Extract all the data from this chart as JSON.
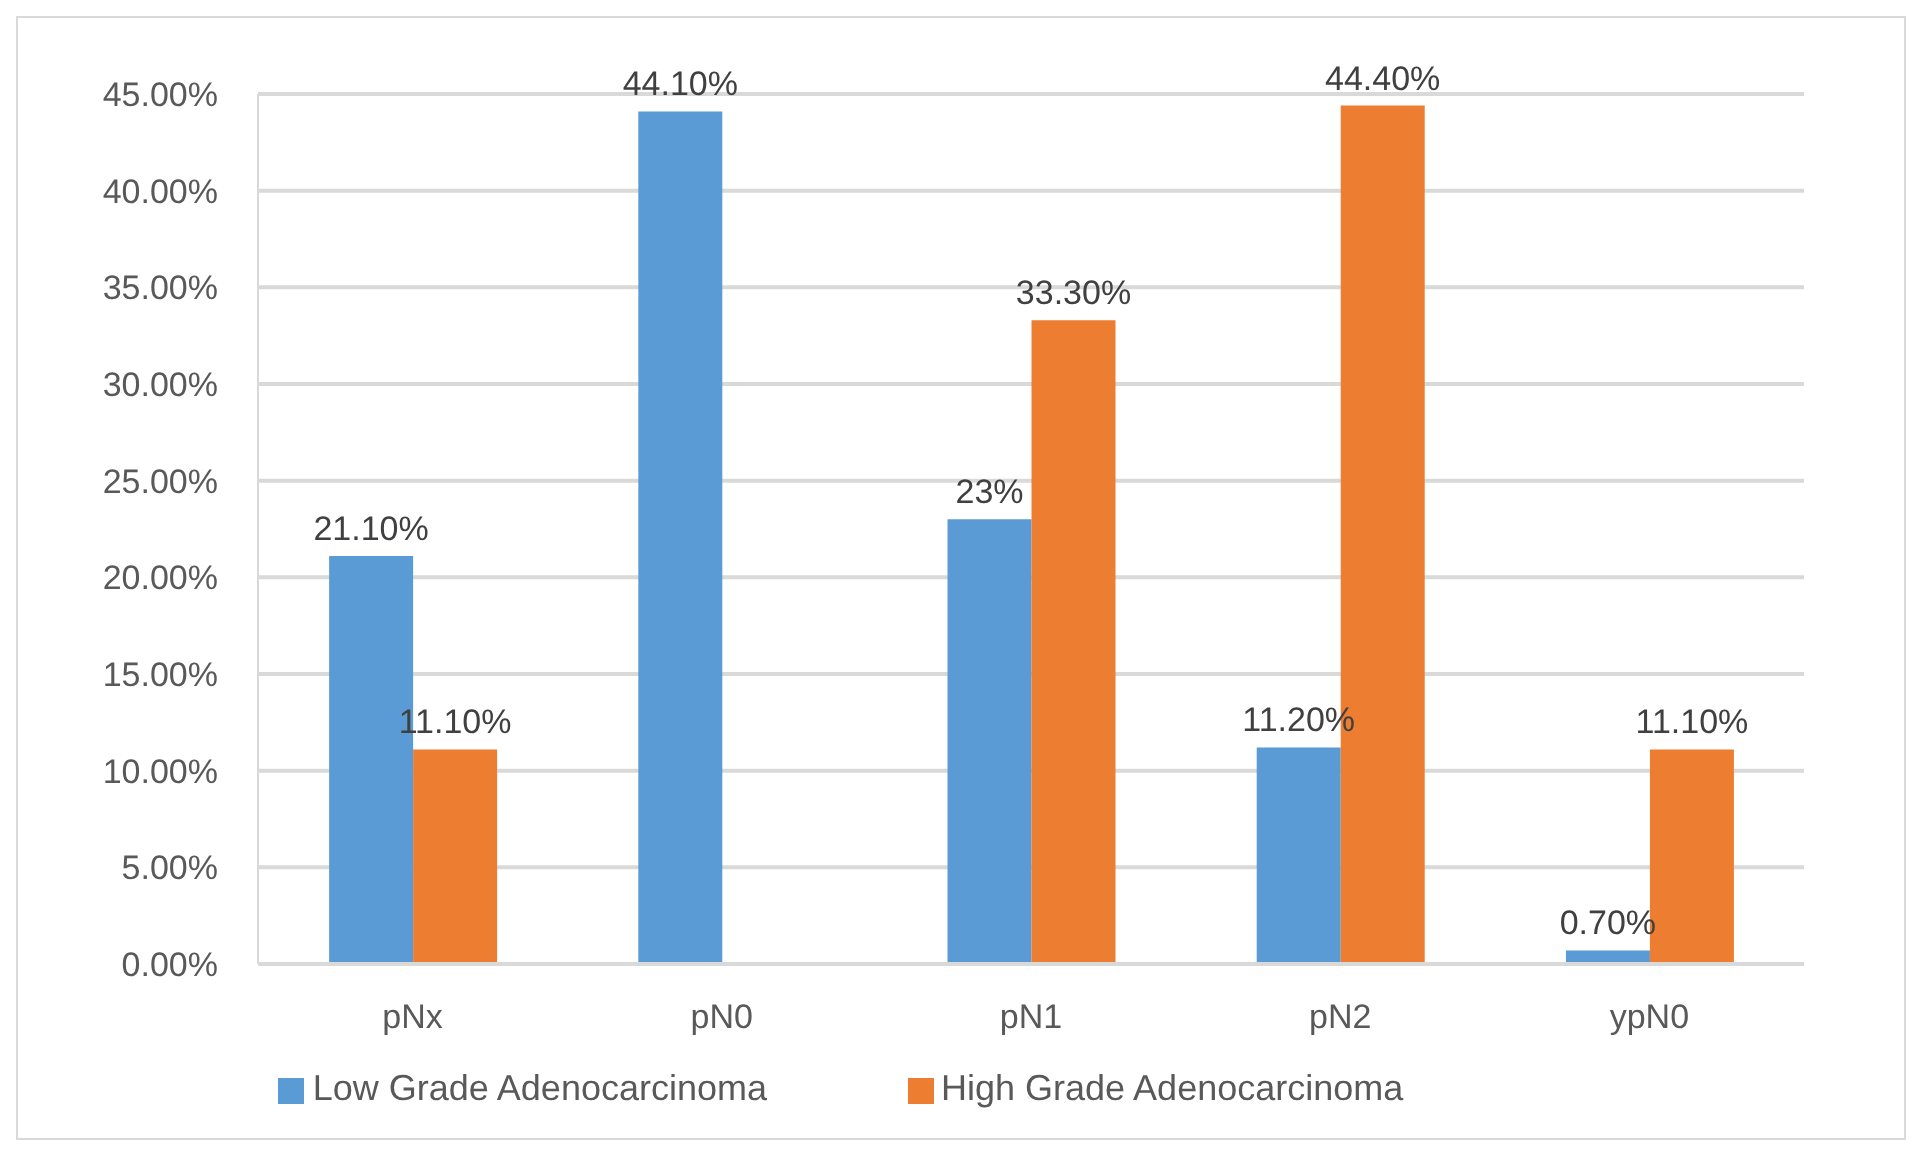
{
  "chart_data": {
    "type": "bar",
    "categories": [
      "pNx",
      "pN0",
      "pN1",
      "pN2",
      "ypN0"
    ],
    "series": [
      {
        "name": "Low Grade Adenocarcinoma",
        "color": "#5b9bd5",
        "values": [
          21.1,
          44.1,
          23,
          11.2,
          0.7
        ],
        "value_labels": [
          "21.10%",
          "44.10%",
          "23%",
          "11.20%",
          "0.70%"
        ]
      },
      {
        "name": "High Grade Adenocarcinoma",
        "color": "#ed7d31",
        "values": [
          11.1,
          null,
          33.3,
          44.4,
          11.1
        ],
        "value_labels": [
          "11.10%",
          null,
          "33.30%",
          "44.40%",
          "11.10%"
        ]
      }
    ],
    "ylim": [
      0,
      45
    ],
    "yticks": [
      {
        "value": 0,
        "label": "0.00%"
      },
      {
        "value": 5,
        "label": "5.00%"
      },
      {
        "value": 10,
        "label": "10.00%"
      },
      {
        "value": 15,
        "label": "15.00%"
      },
      {
        "value": 20,
        "label": "20.00%"
      },
      {
        "value": 25,
        "label": "25.00%"
      },
      {
        "value": 30,
        "label": "30.00%"
      },
      {
        "value": 35,
        "label": "35.00%"
      },
      {
        "value": 40,
        "label": "40.00%"
      },
      {
        "value": 45,
        "label": "45.00%"
      }
    ],
    "grid": "y",
    "legend": "bottom"
  }
}
